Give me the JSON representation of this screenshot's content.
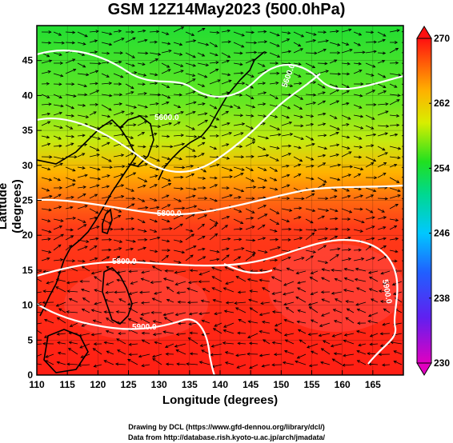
{
  "title": "GSM 12Z14May2023 (500.0hPa)",
  "xlabel": "Longitude (degrees)",
  "ylabel": "Latitude  (degrees)",
  "credit_line1": "Drawing by DCL (https://www.gfd-dennou.org/library/dcl/)",
  "credit_line2": "Data from http://database.rish.kyoto-u.ac.jp/arch/jmadata/",
  "chart_data": {
    "type": "heatmap",
    "x_ticks": [
      110,
      115,
      120,
      125,
      130,
      135,
      140,
      145,
      150,
      155,
      160,
      165
    ],
    "y_ticks": [
      0,
      5,
      10,
      15,
      20,
      25,
      30,
      35,
      40,
      45
    ],
    "xlim": [
      110,
      170
    ],
    "ylim": [
      0,
      50
    ],
    "colorbar": {
      "ticks": [
        230,
        238,
        246,
        254,
        262,
        270
      ],
      "range": [
        230,
        270
      ],
      "colors": [
        "#e000c0",
        "#4020ff",
        "#00c0ff",
        "#00d880",
        "#20e020",
        "#f0f000",
        "#ff8000",
        "#ff1010"
      ]
    },
    "contours": [
      {
        "label": "5600.0"
      },
      {
        "label": "5800.0"
      },
      {
        "label": "5600.0"
      },
      {
        "label": "5800.0"
      },
      {
        "label": "5900.0"
      },
      {
        "label": "5900.0"
      }
    ],
    "grid": true
  }
}
